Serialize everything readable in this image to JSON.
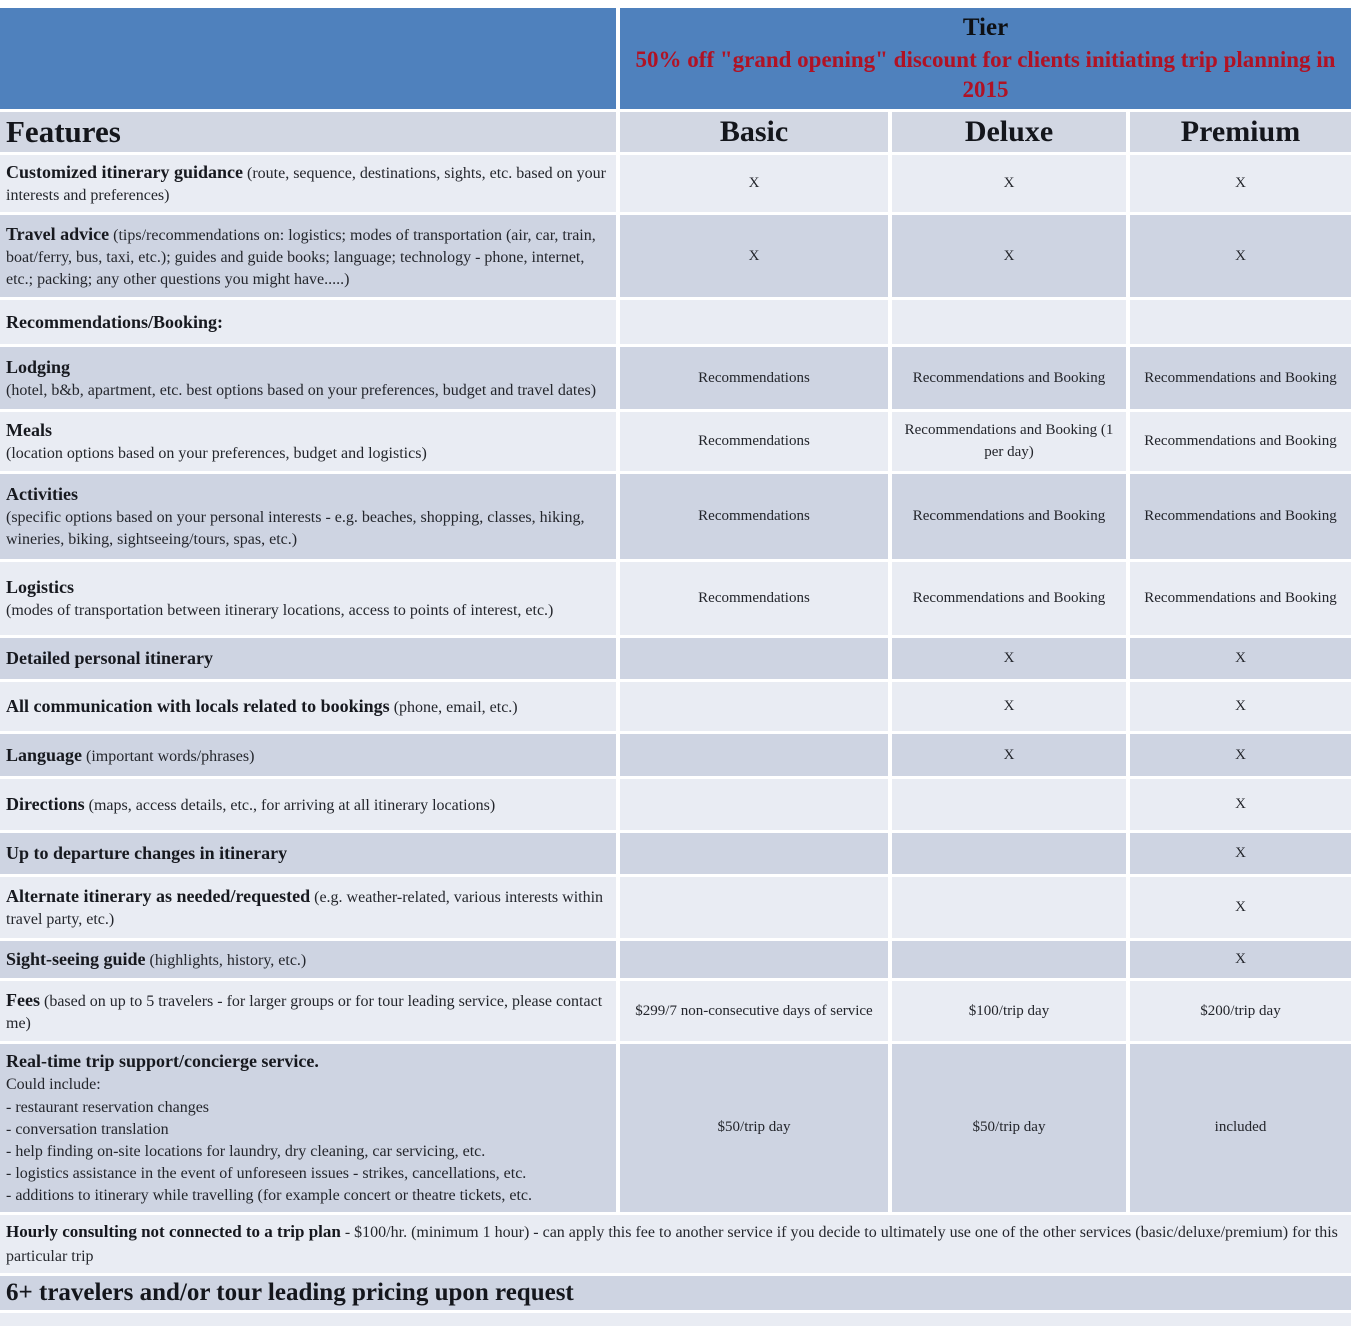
{
  "header": {
    "tier_title": "Tier",
    "promo": "50% off \"grand opening\" discount for clients initiating trip planning in 2015"
  },
  "columns": {
    "features_label": "Features",
    "tiers": [
      "Basic",
      "Deluxe",
      "Premium"
    ]
  },
  "rows": [
    {
      "id": "customized-itinerary",
      "title": "Customized itinerary guidance",
      "desc": "(route, sequence, destinations, sights, etc. based on your interests and preferences)",
      "desc_style": "inline",
      "values": [
        "X",
        "X",
        "X"
      ]
    },
    {
      "id": "travel-advice",
      "title": "Travel advice",
      "desc": "(tips/recommendations on:  logistics; modes of transportation (air, car, train, boat/ferry, bus, taxi, etc.); guides and guide books; language; technology - phone, internet, etc.; packing; any other questions you might have.....)",
      "desc_style": "inline",
      "values": [
        "X",
        "X",
        "X"
      ]
    },
    {
      "id": "recommendations-booking",
      "title": "Recommendations/Booking:",
      "desc": "",
      "desc_style": "none",
      "values": [
        "",
        "",
        ""
      ]
    },
    {
      "id": "lodging",
      "title": "Lodging",
      "desc": "(hotel, b&b, apartment, etc. best options based on your preferences, budget and travel dates)",
      "desc_style": "block",
      "values": [
        "Recommendations",
        "Recommendations and Booking",
        "Recommendations and Booking"
      ]
    },
    {
      "id": "meals",
      "title": "Meals",
      "desc": "(location options based on your preferences, budget and logistics)",
      "desc_style": "block",
      "values": [
        "Recommendations",
        "Recommendations and Booking (1 per day)",
        "Recommendations and Booking"
      ]
    },
    {
      "id": "activities",
      "title": "Activities",
      "desc": "(specific options based on your personal interests - e.g. beaches, shopping, classes, hiking, wineries, biking, sightseeing/tours, spas, etc.)",
      "desc_style": "block",
      "values": [
        "Recommendations",
        "Recommendations and Booking",
        "Recommendations and Booking"
      ]
    },
    {
      "id": "logistics",
      "title": "Logistics",
      "desc": "(modes of transportation between itinerary locations, access to points of interest, etc.)",
      "desc_style": "block",
      "values": [
        "Recommendations",
        "Recommendations and Booking",
        "Recommendations and Booking"
      ]
    },
    {
      "id": "detailed-itinerary",
      "title": "Detailed personal itinerary",
      "desc": "",
      "desc_style": "none",
      "values": [
        "",
        "X",
        "X"
      ]
    },
    {
      "id": "communication",
      "title": "All communication with locals related to bookings",
      "desc": "(phone, email, etc.)",
      "desc_style": "inline",
      "values": [
        "",
        "X",
        "X"
      ]
    },
    {
      "id": "language",
      "title": "Language",
      "desc": "(important words/phrases)",
      "desc_style": "inline",
      "values": [
        "",
        "X",
        "X"
      ]
    },
    {
      "id": "directions",
      "title": "Directions",
      "desc": "(maps, access details, etc., for arriving at all itinerary locations)",
      "desc_style": "inline",
      "values": [
        "",
        "",
        "X"
      ]
    },
    {
      "id": "departure-changes",
      "title": "Up to departure changes in itinerary",
      "desc": "",
      "desc_style": "none",
      "values": [
        "",
        "",
        "X"
      ]
    },
    {
      "id": "alternate-itinerary",
      "title": "Alternate itinerary as needed/requested",
      "desc": "(e.g. weather-related, various interests within travel party, etc.)",
      "desc_style": "inline",
      "values": [
        "",
        "",
        "X"
      ]
    },
    {
      "id": "sightseeing-guide",
      "title": "Sight-seeing guide",
      "desc": "(highlights, history, etc.)",
      "desc_style": "inline",
      "values": [
        "",
        "",
        "X"
      ]
    },
    {
      "id": "fees",
      "title": "Fees",
      "desc": "(based on up to 5 travelers - for larger groups or for tour leading service, please contact me)",
      "desc_style": "inline",
      "values": [
        "$299/7 non-consecutive days of service",
        "$100/trip day",
        "$200/trip day"
      ]
    },
    {
      "id": "realtime-support",
      "title": "Real-time trip support/concierge service.",
      "desc": "",
      "desc_style": "none",
      "lines": [
        "Could include:",
        "- restaurant reservation changes",
        "- conversation translation",
        "- help finding on-site locations for laundry, dry cleaning, car servicing, etc.",
        "- logistics assistance in the event of unforeseen issues - strikes, cancellations, etc.",
        "- additions to itinerary while travelling (for example concert or theatre tickets, etc.",
        ""
      ],
      "values": [
        "$50/trip day",
        "$50/trip day",
        "included"
      ]
    }
  ],
  "footer": {
    "hourly_title": "Hourly consulting not connected to a trip plan",
    "hourly_rest": " - $100/hr. (minimum 1 hour) - can apply this fee to another service if you decide to ultimately use one of the other services (basic/deluxe/premium) for this particular trip",
    "travelers_note": "6+ travelers and/or tour leading pricing upon request"
  },
  "colors": {
    "header_blue": "#4f81bd",
    "promo_red": "#b01224",
    "band_light": "#e9ecf3",
    "band_dark": "#ced4e2",
    "text": "#1c1e24"
  }
}
